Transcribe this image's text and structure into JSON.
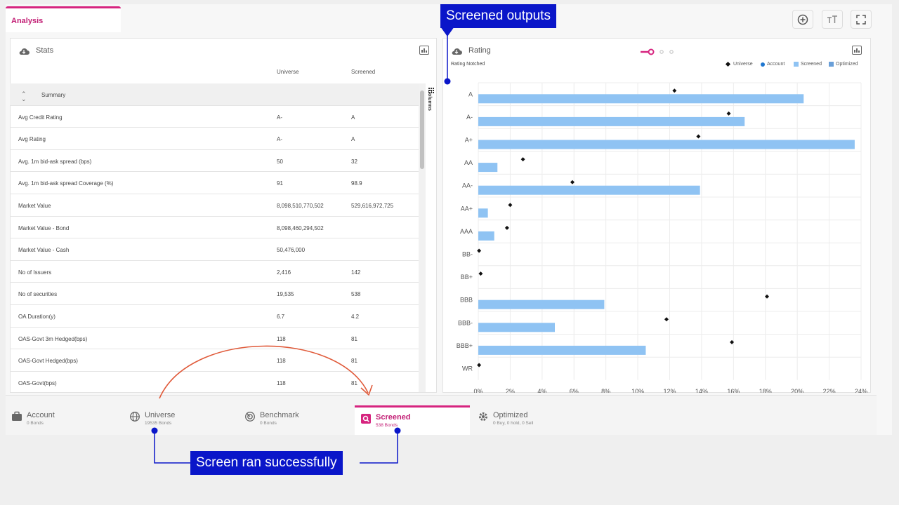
{
  "tabs": {
    "analysis": "Analysis"
  },
  "stats": {
    "title": "Stats",
    "col_universe": "Universe",
    "col_screened": "Screened",
    "summary_label": "Summary",
    "rows": [
      {
        "label": "Avg Credit Rating",
        "universe": "A-",
        "screened": "A"
      },
      {
        "label": "Avg Rating",
        "universe": "A-",
        "screened": "A"
      },
      {
        "label": "Avg. 1m bid-ask spread (bps)",
        "universe": "50",
        "screened": "32"
      },
      {
        "label": "Avg. 1m bid-ask spread Coverage (%)",
        "universe": "91",
        "screened": "98.9"
      },
      {
        "label": "Market Value",
        "universe": "8,098,510,770,502",
        "screened": "529,616,972,725"
      },
      {
        "label": "Market Value - Bond",
        "universe": "8,098,460,294,502",
        "screened": ""
      },
      {
        "label": "Market Value - Cash",
        "universe": "50,476,000",
        "screened": ""
      },
      {
        "label": "No of Issuers",
        "universe": "2,416",
        "screened": "142"
      },
      {
        "label": "No of securities",
        "universe": "19,535",
        "screened": "538"
      },
      {
        "label": "OA Duration(y)",
        "universe": "6.7",
        "screened": "4.2"
      },
      {
        "label": "OAS-Govt 3m Hedged(bps)",
        "universe": "118",
        "screened": "81"
      },
      {
        "label": "OAS-Govt Hedged(bps)",
        "universe": "118",
        "screened": "81"
      },
      {
        "label": "OAS-Govt(bps)",
        "universe": "118",
        "screened": "81"
      }
    ],
    "columns_label": "Columns"
  },
  "rating": {
    "title": "Rating",
    "subtitle": "Rating Notched",
    "legend": [
      "Universe",
      "Account",
      "Screened",
      "Optimized"
    ]
  },
  "chart_data": {
    "type": "bar",
    "orientation": "horizontal",
    "categories": [
      "A",
      "A-",
      "A+",
      "AA",
      "AA-",
      "AA+",
      "AAA",
      "BB-",
      "BB+",
      "BBB",
      "BBB-",
      "BBB+",
      "WR"
    ],
    "series": [
      {
        "name": "Screened",
        "kind": "bar",
        "values": [
          20.4,
          16.7,
          23.6,
          1.2,
          13.9,
          0.6,
          1.0,
          0,
          0,
          7.9,
          4.8,
          10.5,
          0
        ]
      },
      {
        "name": "Universe",
        "kind": "marker",
        "values": [
          12.3,
          15.7,
          13.8,
          2.8,
          5.9,
          2.0,
          1.8,
          0.05,
          0.15,
          18.1,
          11.8,
          15.9,
          0.05
        ]
      }
    ],
    "x_ticks": [
      "0%",
      "2%",
      "4%",
      "6%",
      "8%",
      "10%",
      "12%",
      "14%",
      "16%",
      "18%",
      "20%",
      "22%",
      "24%"
    ],
    "xlim": [
      0,
      24
    ],
    "grid": true,
    "legend_position": "top-right",
    "colors": {
      "screened": "#8fc3f3",
      "universe": "#111111"
    }
  },
  "bottom_tabs": [
    {
      "key": "account",
      "title": "Account",
      "sub": "0 Bonds"
    },
    {
      "key": "universe",
      "title": "Universe",
      "sub": "19535 Bonds"
    },
    {
      "key": "benchmark",
      "title": "Benchmark",
      "sub": "0 Bonds"
    },
    {
      "key": "screened",
      "title": "Screened",
      "sub": "538 Bonds"
    },
    {
      "key": "optimized",
      "title": "Optimized",
      "sub": "0 Buy, 0 hold, 0 Sell"
    }
  ],
  "callouts": {
    "top": "Screened outputs",
    "bottom": "Screen ran successfully"
  },
  "colors": {
    "accent": "#d6247f",
    "callout": "#0a16c9",
    "arrow": "#e05a3a"
  }
}
